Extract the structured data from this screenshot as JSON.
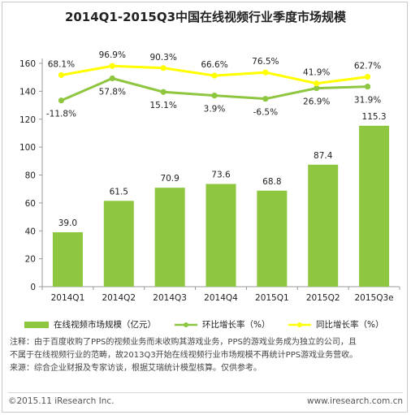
{
  "chart_data": {
    "type": "bar",
    "title": "2014Q1-2015Q3中国在线视频行业季度市场规模",
    "categories": [
      "2014Q1",
      "2014Q2",
      "2014Q3",
      "2014Q4",
      "2015Q1",
      "2015Q2",
      "2015Q3e"
    ],
    "ylim": [
      0,
      160
    ],
    "yticks": [
      0,
      20,
      40,
      60,
      80,
      100,
      120,
      140,
      160
    ],
    "grid": false,
    "legend_placement": "bottom",
    "series": [
      {
        "name": "在线视频市场规模（亿元）",
        "type": "bar",
        "values": [
          39.0,
          61.5,
          70.9,
          73.6,
          68.8,
          87.4,
          115.3
        ],
        "labels": [
          "39.0",
          "61.5",
          "70.9",
          "73.6",
          "68.8",
          "87.4",
          "115.3"
        ],
        "color": "#8ec63f"
      },
      {
        "name": "环比增长率（%）",
        "type": "line",
        "values": [
          -11.8,
          57.8,
          15.1,
          3.9,
          -6.5,
          26.9,
          31.9
        ],
        "labels": [
          "-11.8%",
          "57.8%",
          "15.1%",
          "3.9%",
          "-6.5%",
          "26.9%",
          "31.9%"
        ],
        "color": "#8ec63f"
      },
      {
        "name": "同比增长率（%）",
        "type": "line",
        "values": [
          68.1,
          96.9,
          90.3,
          66.6,
          76.5,
          41.9,
          62.7
        ],
        "labels": [
          "68.1%",
          "96.9%",
          "90.3%",
          "66.6%",
          "76.5%",
          "41.9%",
          "62.7%"
        ],
        "color": "#ffff00"
      }
    ]
  },
  "notes": {
    "line1": "注释：由于百度收购了PPS的视频业务而未收购其游戏业务，PPS的游戏业务成为独立的公司，且",
    "line2": "不属于在线视频行业的范畴，故2013Q3开始在线视频行业市场规模不再统计PPS游戏业务营收。",
    "line3": "来源：综合企业财报及专家访谈，根据艾瑞统计模型核算。仅供参考。"
  },
  "footer": {
    "copyright": "©2015.11 iResearch Inc.",
    "website": "www.iresearch.com.cn"
  }
}
